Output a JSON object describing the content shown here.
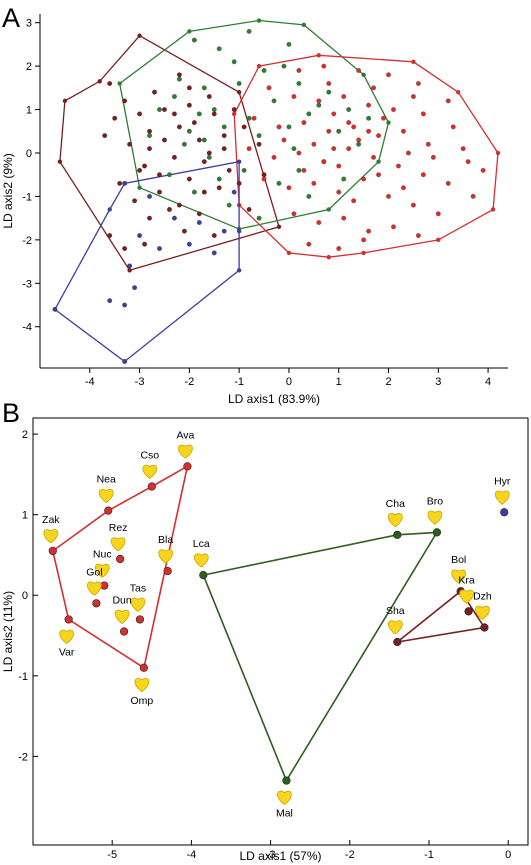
{
  "chart_data": [
    {
      "panel": "A",
      "type": "scatter",
      "xlabel": "LD axis1 (83.9%)",
      "ylabel": "LD axis2 (9%)",
      "xticks": [
        -4,
        -3,
        -2,
        -1,
        0,
        1,
        2,
        3,
        4
      ],
      "yticks": [
        -4,
        -3,
        -2,
        -1,
        0,
        1,
        2,
        3
      ],
      "xlim": [
        -5.0,
        4.4
      ],
      "ylim": [
        -4.95,
        3.2
      ],
      "groups": [
        {
          "color": "#7a1f1f",
          "hull": [
            [
              -3.0,
              2.7
            ],
            [
              -1.0,
              1.4
            ],
            [
              -0.2,
              -1.7
            ],
            [
              -3.2,
              -2.7
            ],
            [
              -4.6,
              -0.2
            ],
            [
              -4.5,
              1.2
            ],
            [
              -3.8,
              1.65
            ]
          ],
          "points": [
            [
              -3.6,
              1.6
            ],
            [
              -3.3,
              1.2
            ],
            [
              -3.5,
              0.8
            ],
            [
              -3.0,
              0.9
            ],
            [
              -2.8,
              0.5
            ],
            [
              -2.5,
              1.0
            ],
            [
              -2.2,
              0.6
            ],
            [
              -2.0,
              1.1
            ],
            [
              -1.8,
              0.3
            ],
            [
              -1.5,
              0.9
            ],
            [
              -1.3,
              0.4
            ],
            [
              -1.1,
              1.0
            ],
            [
              -3.2,
              0.2
            ],
            [
              -2.9,
              -0.3
            ],
            [
              -2.6,
              -0.5
            ],
            [
              -2.3,
              -0.1
            ],
            [
              -2.0,
              -0.6
            ],
            [
              -1.7,
              -0.2
            ],
            [
              -1.4,
              -0.8
            ],
            [
              -1.2,
              -0.4
            ],
            [
              -3.4,
              -0.7
            ],
            [
              -3.1,
              -1.1
            ],
            [
              -2.8,
              -1.5
            ],
            [
              -2.4,
              -1.3
            ],
            [
              -2.1,
              -1.8
            ],
            [
              -1.8,
              -1.4
            ],
            [
              -1.5,
              -1.9
            ],
            [
              -3.6,
              -1.9
            ],
            [
              -3.3,
              -2.2
            ],
            [
              -2.9,
              -2.1
            ],
            [
              -1.0,
              -0.7
            ],
            [
              -0.8,
              -1.3
            ],
            [
              -0.6,
              0.2
            ],
            [
              -0.5,
              -0.5
            ],
            [
              -2.5,
              0.3
            ],
            [
              -2.7,
              1.4
            ],
            [
              -2.2,
              1.8
            ],
            [
              -1.9,
              0.7
            ],
            [
              -1.6,
              0.0
            ],
            [
              -2.3,
              0.9
            ],
            [
              -3.7,
              0.4
            ],
            [
              -2.0,
              1.5
            ],
            [
              -1.6,
              1.3
            ],
            [
              -2.6,
              -0.9
            ],
            [
              -1.3,
              0.1
            ],
            [
              -0.9,
              0.6
            ],
            [
              -2.2,
              -1.2
            ],
            [
              -1.7,
              -0.9
            ],
            [
              -3.0,
              -0.4
            ],
            [
              -2.8,
              0.1
            ]
          ]
        },
        {
          "color": "#2e7d32",
          "hull": [
            [
              -2.0,
              2.8
            ],
            [
              -0.6,
              3.05
            ],
            [
              0.3,
              2.95
            ],
            [
              1.5,
              1.8
            ],
            [
              2.0,
              0.7
            ],
            [
              1.8,
              -0.2
            ],
            [
              0.8,
              -1.3
            ],
            [
              -1.0,
              -1.75
            ],
            [
              -3.0,
              -0.8
            ],
            [
              -3.4,
              1.6
            ]
          ],
          "points": [
            [
              -1.9,
              2.6
            ],
            [
              -1.4,
              2.4
            ],
            [
              -0.8,
              2.8
            ],
            [
              0.0,
              2.5
            ],
            [
              -1.1,
              2.1
            ],
            [
              -0.5,
              1.9
            ],
            [
              0.2,
              1.6
            ],
            [
              0.8,
              1.4
            ],
            [
              1.2,
              1.0
            ],
            [
              1.6,
              0.8
            ],
            [
              -2.2,
              1.7
            ],
            [
              -1.7,
              1.5
            ],
            [
              -2.6,
              1.0
            ],
            [
              -0.3,
              1.2
            ],
            [
              0.4,
              0.9
            ],
            [
              1.0,
              0.5
            ],
            [
              1.4,
              0.2
            ],
            [
              -1.8,
              0.9
            ],
            [
              -1.3,
              0.6
            ],
            [
              -0.6,
              0.4
            ],
            [
              0.1,
              0.1
            ],
            [
              0.7,
              -0.2
            ],
            [
              1.1,
              -0.6
            ],
            [
              -2.1,
              0.2
            ],
            [
              -1.6,
              -0.1
            ],
            [
              -0.9,
              -0.4
            ],
            [
              -0.2,
              -0.7
            ],
            [
              0.4,
              -1.0
            ],
            [
              -2.4,
              -0.5
            ],
            [
              -1.9,
              -0.9
            ],
            [
              -1.2,
              -1.2
            ],
            [
              -0.6,
              -1.5
            ],
            [
              -2.0,
              0.5
            ],
            [
              -1.5,
              1.0
            ],
            [
              -0.8,
              0.8
            ],
            [
              0.0,
              0.6
            ],
            [
              -2.8,
              0.4
            ],
            [
              -1.0,
              1.6
            ],
            [
              -0.1,
              2.0
            ],
            [
              0.6,
              1.1
            ],
            [
              -1.4,
              -0.6
            ],
            [
              0.2,
              -0.4
            ],
            [
              -1.7,
              0.3
            ],
            [
              -2.3,
              1.3
            ]
          ]
        },
        {
          "color": "#d32f2f",
          "hull": [
            [
              -0.6,
              2.0
            ],
            [
              0.6,
              2.25
            ],
            [
              2.5,
              2.1
            ],
            [
              3.4,
              1.4
            ],
            [
              4.2,
              0.0
            ],
            [
              4.1,
              -1.3
            ],
            [
              3.0,
              -2.0
            ],
            [
              1.5,
              -2.3
            ],
            [
              0.8,
              -2.4
            ],
            [
              0.0,
              -2.3
            ],
            [
              -1.0,
              -1.2
            ],
            [
              -1.1,
              0.9
            ]
          ],
          "points": [
            [
              0.2,
              1.9
            ],
            [
              0.7,
              2.0
            ],
            [
              1.4,
              1.9
            ],
            [
              2.0,
              1.8
            ],
            [
              2.6,
              1.6
            ],
            [
              3.2,
              1.2
            ],
            [
              -0.4,
              1.5
            ],
            [
              0.1,
              1.3
            ],
            [
              0.6,
              1.2
            ],
            [
              1.1,
              1.3
            ],
            [
              1.6,
              1.1
            ],
            [
              2.1,
              1.0
            ],
            [
              2.7,
              0.9
            ],
            [
              3.3,
              0.6
            ],
            [
              -0.7,
              0.8
            ],
            [
              -0.2,
              0.6
            ],
            [
              0.3,
              0.7
            ],
            [
              0.8,
              0.5
            ],
            [
              1.3,
              0.6
            ],
            [
              1.8,
              0.4
            ],
            [
              2.3,
              0.5
            ],
            [
              2.8,
              0.2
            ],
            [
              3.5,
              0.1
            ],
            [
              3.9,
              -0.4
            ],
            [
              -0.8,
              0.1
            ],
            [
              -0.3,
              -0.1
            ],
            [
              0.2,
              0.0
            ],
            [
              0.7,
              -0.2
            ],
            [
              1.2,
              0.1
            ],
            [
              1.7,
              -0.1
            ],
            [
              2.2,
              -0.3
            ],
            [
              2.7,
              -0.5
            ],
            [
              3.2,
              -0.7
            ],
            [
              3.7,
              -1.0
            ],
            [
              -0.5,
              -0.6
            ],
            [
              0.0,
              -0.8
            ],
            [
              0.5,
              -0.7
            ],
            [
              1.0,
              -0.9
            ],
            [
              1.5,
              -0.6
            ],
            [
              2.0,
              -1.0
            ],
            [
              2.5,
              -1.2
            ],
            [
              3.0,
              -1.4
            ],
            [
              0.1,
              -1.4
            ],
            [
              0.6,
              -1.6
            ],
            [
              1.1,
              -1.5
            ],
            [
              1.6,
              -1.8
            ],
            [
              2.1,
              -1.7
            ],
            [
              2.6,
              -1.9
            ],
            [
              0.4,
              -2.1
            ],
            [
              1.0,
              -2.2
            ],
            [
              1.5,
              -2.0
            ],
            [
              0.9,
              0.9
            ],
            [
              1.4,
              0.3
            ],
            [
              1.9,
              0.8
            ],
            [
              2.4,
              0.0
            ],
            [
              0.5,
              0.2
            ],
            [
              1.0,
              -0.3
            ],
            [
              1.8,
              -0.5
            ],
            [
              2.3,
              -0.8
            ],
            [
              1.2,
              0.7
            ],
            [
              0.8,
              1.6
            ],
            [
              1.7,
              1.5
            ],
            [
              2.5,
              1.3
            ],
            [
              0.3,
              -0.4
            ],
            [
              1.3,
              -1.1
            ],
            [
              2.9,
              -0.1
            ],
            [
              3.6,
              -0.2
            ],
            [
              -0.1,
              0.3
            ],
            [
              0.9,
              0.1
            ],
            [
              1.6,
              0.5
            ]
          ]
        },
        {
          "color": "#3f3f9f",
          "hull": [
            [
              -3.3,
              -0.7
            ],
            [
              -1.0,
              -0.2
            ],
            [
              -1.0,
              -1.8
            ],
            [
              -1.0,
              -2.7
            ],
            [
              -3.3,
              -4.8
            ],
            [
              -4.7,
              -3.6
            ],
            [
              -3.6,
              -1.3
            ]
          ],
          "points": [
            [
              -3.3,
              -0.7
            ],
            [
              -2.8,
              -1.0
            ],
            [
              -2.3,
              -1.5
            ],
            [
              -1.8,
              -1.6
            ],
            [
              -1.3,
              -1.8
            ],
            [
              -1.1,
              -0.9
            ],
            [
              -3.0,
              -1.9
            ],
            [
              -2.6,
              -2.2
            ],
            [
              -3.2,
              -2.6
            ],
            [
              -3.6,
              -3.4
            ],
            [
              -3.1,
              -3.1
            ],
            [
              -3.3,
              -3.5
            ],
            [
              -4.7,
              -3.6
            ],
            [
              -3.3,
              -4.8
            ],
            [
              -2.0,
              -2.1
            ],
            [
              -1.5,
              -2.3
            ]
          ]
        }
      ]
    },
    {
      "panel": "B",
      "type": "scatter",
      "xlabel": "LD axis1 (57%)",
      "ylabel": "LD axis2 (11%)",
      "xticks": [
        -5,
        -4,
        -3,
        -2,
        -1,
        0
      ],
      "yticks": [
        2,
        1,
        0,
        -1,
        -2
      ],
      "xlim": [
        -6.0,
        0.25
      ],
      "ylim": [
        -3.1,
        2.2
      ],
      "groups": [
        {
          "color": "#d32f2f",
          "hull_order": [
            "Ava",
            "Omp",
            "Var",
            "Zak",
            "Nea",
            "Cso"
          ],
          "points": [
            {
              "label": "Ava",
              "x": -4.05,
              "y": 1.6
            },
            {
              "label": "Cso",
              "x": -4.5,
              "y": 1.35
            },
            {
              "label": "Nea",
              "x": -5.05,
              "y": 1.05
            },
            {
              "label": "Zak",
              "x": -5.75,
              "y": 0.55
            },
            {
              "label": "Rez",
              "x": -4.9,
              "y": 0.45
            },
            {
              "label": "Bla",
              "x": -4.3,
              "y": 0.3
            },
            {
              "label": "Nuc",
              "x": -5.1,
              "y": 0.12
            },
            {
              "label": "Gol",
              "x": -5.2,
              "y": -0.1
            },
            {
              "label": "Tas",
              "x": -4.65,
              "y": -0.3
            },
            {
              "label": "Var",
              "x": -5.55,
              "y": -0.3
            },
            {
              "label": "Dun",
              "x": -4.85,
              "y": -0.45
            },
            {
              "label": "Omp",
              "x": -4.6,
              "y": -0.9
            }
          ]
        },
        {
          "color": "#2e5e1e",
          "hull_order": [
            "Lca",
            "Cha",
            "Bro",
            "Mal"
          ],
          "points": [
            {
              "label": "Lca",
              "x": -3.85,
              "y": 0.25
            },
            {
              "label": "Cha",
              "x": -1.4,
              "y": 0.75
            },
            {
              "label": "Bro",
              "x": -0.9,
              "y": 0.78
            },
            {
              "label": "Mal",
              "x": -2.8,
              "y": -2.3
            }
          ]
        },
        {
          "color": "#7a1f1f",
          "hull_order": [
            "Bol",
            "Dzh",
            "Sha"
          ],
          "points": [
            {
              "label": "Bol",
              "x": -0.6,
              "y": 0.05
            },
            {
              "label": "Dzh",
              "x": -0.3,
              "y": -0.4
            },
            {
              "label": "Kra",
              "x": -0.5,
              "y": -0.2
            },
            {
              "label": "Sha",
              "x": -1.4,
              "y": -0.58
            }
          ]
        },
        {
          "color": "#3f3f9f",
          "hull_order": [],
          "points": [
            {
              "label": "Hyr",
              "x": -0.05,
              "y": 1.03
            }
          ]
        }
      ]
    }
  ],
  "panels": {
    "A": {
      "letter": "A"
    },
    "B": {
      "letter": "B"
    }
  }
}
